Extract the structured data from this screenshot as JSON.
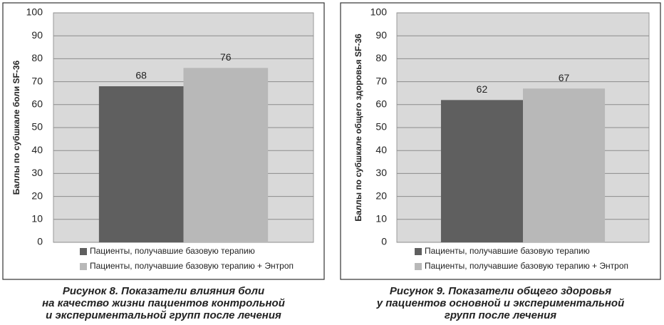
{
  "chart_data": [
    {
      "type": "bar",
      "y_label": "Баллы по субшкале боли SF-36",
      "series": [
        {
          "name": "Пациенты, получавшие базовую терапию",
          "color": "#5f5f5f",
          "values": [
            68
          ]
        },
        {
          "name": "Пациенты, получавшие базовую терапию + Энтроп",
          "color": "#b8b8b8",
          "values": [
            76
          ]
        }
      ],
      "ylim": [
        0,
        100
      ],
      "yticks": [
        0,
        10,
        20,
        30,
        40,
        50,
        60,
        70,
        80,
        90,
        100
      ],
      "grid": true,
      "caption": [
        "Рисунок 8. Показатели влияния боли",
        "на качество жизни пациентов контрольной",
        "и экспериментальной групп после лечения"
      ]
    },
    {
      "type": "bar",
      "y_label": "Баллы по субшкале общего здоровья SF-36",
      "series": [
        {
          "name": "Пациенты, получавшие базовую терапию",
          "color": "#5f5f5f",
          "values": [
            62
          ]
        },
        {
          "name": "Пациенты, получавшие базовую терапию + Энтроп",
          "color": "#b8b8b8",
          "values": [
            67
          ]
        }
      ],
      "ylim": [
        0,
        100
      ],
      "yticks": [
        0,
        10,
        20,
        30,
        40,
        50,
        60,
        70,
        80,
        90,
        100
      ],
      "grid": true,
      "caption": [
        "Рисунок 9. Показатели общего здоровья",
        "у пациентов основной и экспериментальной",
        "групп после лечения"
      ]
    }
  ]
}
